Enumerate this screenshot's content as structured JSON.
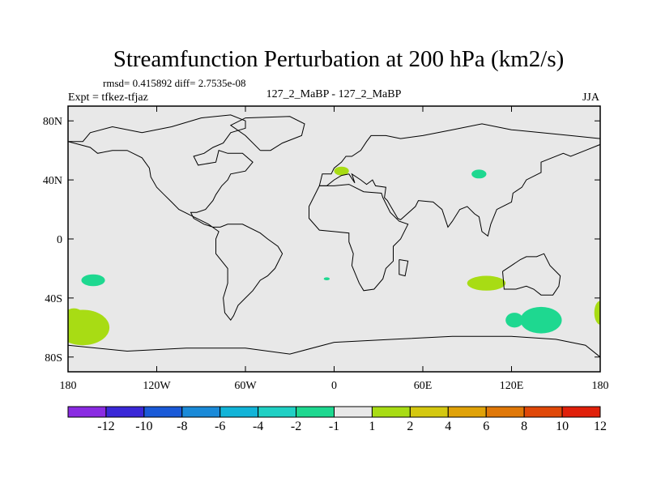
{
  "chart_data": {
    "type": "heatmap",
    "title": "Streamfunction Perturbation at 200 hPa (km2/s)",
    "stats_line": "rmsd= 0.415892 diff= 2.7535e-08",
    "left_label": "Expt = tfkez-tfjaz",
    "center_label": "127_2_MaBP - 127_2_MaBP",
    "right_label": "JJA",
    "x_ticks": [
      {
        "value": -180,
        "label": "180"
      },
      {
        "value": -120,
        "label": "120W"
      },
      {
        "value": -60,
        "label": "60W"
      },
      {
        "value": 0,
        "label": "0"
      },
      {
        "value": 60,
        "label": "60E"
      },
      {
        "value": 120,
        "label": "120E"
      },
      {
        "value": 180,
        "label": "180"
      }
    ],
    "y_ticks": [
      {
        "value": 80,
        "label": "80N"
      },
      {
        "value": 40,
        "label": "40N"
      },
      {
        "value": 0,
        "label": "0"
      },
      {
        "value": -40,
        "label": "40S"
      },
      {
        "value": -80,
        "label": "80S"
      }
    ],
    "xlim": [
      -180,
      180
    ],
    "ylim": [
      -90,
      90
    ],
    "background_color": "#e8e8e8",
    "colorbar": {
      "colors": [
        "#8a2be2",
        "#3a28d8",
        "#1a5ad8",
        "#1a8ad8",
        "#12b4d8",
        "#20d0c4",
        "#1ed890",
        "#e8e8e8",
        "#a8dc14",
        "#d4c810",
        "#e0a208",
        "#e07808",
        "#e04808",
        "#e0200a"
      ],
      "labels": [
        "-12",
        "-10",
        "-8",
        "-6",
        "-4",
        "-2",
        "-1",
        "1",
        "2",
        "4",
        "6",
        "8",
        "10",
        "12"
      ]
    },
    "anomalies": [
      {
        "lon": -170,
        "lat": -60,
        "rlon": 18,
        "rlat": 12,
        "color": "#a8dc14"
      },
      {
        "lon": -176,
        "lat": -55,
        "rlon": 8,
        "rlat": 8,
        "color": "#a8dc14"
      },
      {
        "lon": -163,
        "lat": -28,
        "rlon": 8,
        "rlat": 4,
        "color": "#1ed890"
      },
      {
        "lon": 5,
        "lat": 46,
        "rlon": 5,
        "rlat": 3,
        "color": "#a8dc14"
      },
      {
        "lon": 98,
        "lat": 44,
        "rlon": 5,
        "rlat": 3,
        "color": "#1ed890"
      },
      {
        "lon": 103,
        "lat": -30,
        "rlon": 13,
        "rlat": 5,
        "color": "#a8dc14"
      },
      {
        "lon": 140,
        "lat": -55,
        "rlon": 14,
        "rlat": 9,
        "color": "#1ed890"
      },
      {
        "lon": 122,
        "lat": -55,
        "rlon": 6,
        "rlat": 5,
        "color": "#1ed890"
      },
      {
        "lon": -5,
        "lat": -27,
        "rlon": 2,
        "rlat": 1,
        "color": "#1ed890"
      },
      {
        "lon": 180,
        "lat": -50,
        "rlon": 4,
        "rlat": 8,
        "color": "#a8dc14"
      }
    ],
    "continents": [
      [
        [
          -180,
          66
        ],
        [
          -170,
          66
        ],
        [
          -165,
          72
        ],
        [
          -150,
          76
        ],
        [
          -130,
          72
        ],
        [
          -110,
          76
        ],
        [
          -90,
          82
        ],
        [
          -70,
          84
        ],
        [
          -60,
          80
        ],
        [
          -60,
          75
        ],
        [
          -70,
          72
        ],
        [
          -75,
          65
        ],
        [
          -82,
          62
        ],
        [
          -88,
          58
        ],
        [
          -95,
          56
        ],
        [
          -92,
          50
        ],
        [
          -80,
          52
        ],
        [
          -78,
          60
        ],
        [
          -72,
          58
        ],
        [
          -62,
          58
        ],
        [
          -55,
          52
        ],
        [
          -60,
          46
        ],
        [
          -70,
          44
        ],
        [
          -72,
          40
        ],
        [
          -76,
          36
        ],
        [
          -80,
          30
        ],
        [
          -82,
          26
        ],
        [
          -87,
          20
        ],
        [
          -93,
          18
        ],
        [
          -97,
          18
        ],
        [
          -95,
          14
        ],
        [
          -88,
          10
        ],
        [
          -82,
          8
        ],
        [
          -77,
          8
        ],
        [
          -72,
          10
        ],
        [
          -62,
          10
        ],
        [
          -50,
          4
        ],
        [
          -45,
          0
        ],
        [
          -38,
          -5
        ],
        [
          -35,
          -10
        ],
        [
          -40,
          -20
        ],
        [
          -45,
          -25
        ],
        [
          -50,
          -28
        ],
        [
          -55,
          -35
        ],
        [
          -60,
          -40
        ],
        [
          -65,
          -45
        ],
        [
          -68,
          -52
        ],
        [
          -70,
          -55
        ],
        [
          -74,
          -50
        ],
        [
          -75,
          -40
        ],
        [
          -72,
          -30
        ],
        [
          -72,
          -20
        ],
        [
          -80,
          -10
        ],
        [
          -80,
          0
        ],
        [
          -78,
          5
        ],
        [
          -85,
          10
        ],
        [
          -95,
          15
        ],
        [
          -105,
          20
        ],
        [
          -110,
          25
        ],
        [
          -115,
          30
        ],
        [
          -120,
          35
        ],
        [
          -124,
          42
        ],
        [
          -125,
          48
        ],
        [
          -130,
          55
        ],
        [
          -140,
          60
        ],
        [
          -150,
          60
        ],
        [
          -160,
          58
        ],
        [
          -165,
          62
        ],
        [
          -180,
          66
        ]
      ],
      [
        [
          -5,
          36
        ],
        [
          -10,
          36
        ],
        [
          -17,
          22
        ],
        [
          -17,
          14
        ],
        [
          -10,
          6
        ],
        [
          0,
          5
        ],
        [
          10,
          4
        ],
        [
          10,
          -2
        ],
        [
          13,
          -10
        ],
        [
          12,
          -18
        ],
        [
          17,
          -30
        ],
        [
          20,
          -35
        ],
        [
          27,
          -34
        ],
        [
          33,
          -27
        ],
        [
          35,
          -20
        ],
        [
          40,
          -15
        ],
        [
          40,
          -5
        ],
        [
          45,
          0
        ],
        [
          50,
          10
        ],
        [
          44,
          12
        ],
        [
          38,
          18
        ],
        [
          33,
          28
        ],
        [
          32,
          31
        ],
        [
          20,
          32
        ],
        [
          10,
          37
        ],
        [
          0,
          36
        ],
        [
          -5,
          36
        ]
      ],
      [
        [
          -10,
          36
        ],
        [
          -8,
          44
        ],
        [
          -2,
          44
        ],
        [
          0,
          48
        ],
        [
          5,
          52
        ],
        [
          8,
          56
        ],
        [
          12,
          56
        ],
        [
          18,
          60
        ],
        [
          22,
          66
        ],
        [
          25,
          70
        ],
        [
          35,
          70
        ],
        [
          45,
          68
        ],
        [
          60,
          70
        ],
        [
          80,
          74
        ],
        [
          100,
          78
        ],
        [
          120,
          74
        ],
        [
          140,
          72
        ],
        [
          160,
          70
        ],
        [
          180,
          68
        ],
        [
          180,
          64
        ],
        [
          170,
          60
        ],
        [
          160,
          56
        ],
        [
          155,
          58
        ],
        [
          140,
          52
        ],
        [
          140,
          45
        ],
        [
          130,
          40
        ],
        [
          127,
          35
        ],
        [
          121,
          31
        ],
        [
          120,
          25
        ],
        [
          110,
          20
        ],
        [
          106,
          10
        ],
        [
          104,
          2
        ],
        [
          100,
          5
        ],
        [
          98,
          15
        ],
        [
          95,
          17
        ],
        [
          90,
          22
        ],
        [
          85,
          20
        ],
        [
          80,
          12
        ],
        [
          77,
          8
        ],
        [
          73,
          20
        ],
        [
          67,
          25
        ],
        [
          57,
          26
        ],
        [
          55,
          22
        ],
        [
          45,
          13
        ],
        [
          43,
          14
        ],
        [
          36,
          26
        ],
        [
          34,
          28
        ],
        [
          35,
          35
        ],
        [
          28,
          36
        ],
        [
          26,
          40
        ],
        [
          22,
          37
        ],
        [
          18,
          40
        ],
        [
          12,
          44
        ],
        [
          14,
          38
        ],
        [
          10,
          44
        ],
        [
          5,
          43
        ],
        [
          0,
          40
        ],
        [
          -5,
          36
        ],
        [
          -10,
          36
        ]
      ],
      [
        [
          114,
          -22
        ],
        [
          115,
          -34
        ],
        [
          123,
          -34
        ],
        [
          130,
          -32
        ],
        [
          135,
          -34
        ],
        [
          140,
          -38
        ],
        [
          148,
          -38
        ],
        [
          152,
          -32
        ],
        [
          153,
          -25
        ],
        [
          146,
          -18
        ],
        [
          142,
          -10
        ],
        [
          137,
          -12
        ],
        [
          130,
          -12
        ],
        [
          126,
          -14
        ],
        [
          120,
          -18
        ],
        [
          114,
          -22
        ]
      ],
      [
        [
          -50,
          60
        ],
        [
          -60,
          70
        ],
        [
          -70,
          77
        ],
        [
          -60,
          82
        ],
        [
          -30,
          83
        ],
        [
          -20,
          78
        ],
        [
          -22,
          70
        ],
        [
          -35,
          65
        ],
        [
          -43,
          60
        ],
        [
          -50,
          60
        ]
      ],
      [
        [
          -180,
          -72
        ],
        [
          -140,
          -76
        ],
        [
          -100,
          -74
        ],
        [
          -60,
          -74
        ],
        [
          -30,
          -78
        ],
        [
          0,
          -70
        ],
        [
          40,
          -68
        ],
        [
          80,
          -66
        ],
        [
          120,
          -66
        ],
        [
          150,
          -68
        ],
        [
          170,
          -72
        ],
        [
          180,
          -80
        ]
      ],
      [
        [
          44,
          -14
        ],
        [
          50,
          -15
        ],
        [
          48,
          -25
        ],
        [
          44,
          -24
        ],
        [
          44,
          -14
        ]
      ]
    ]
  }
}
